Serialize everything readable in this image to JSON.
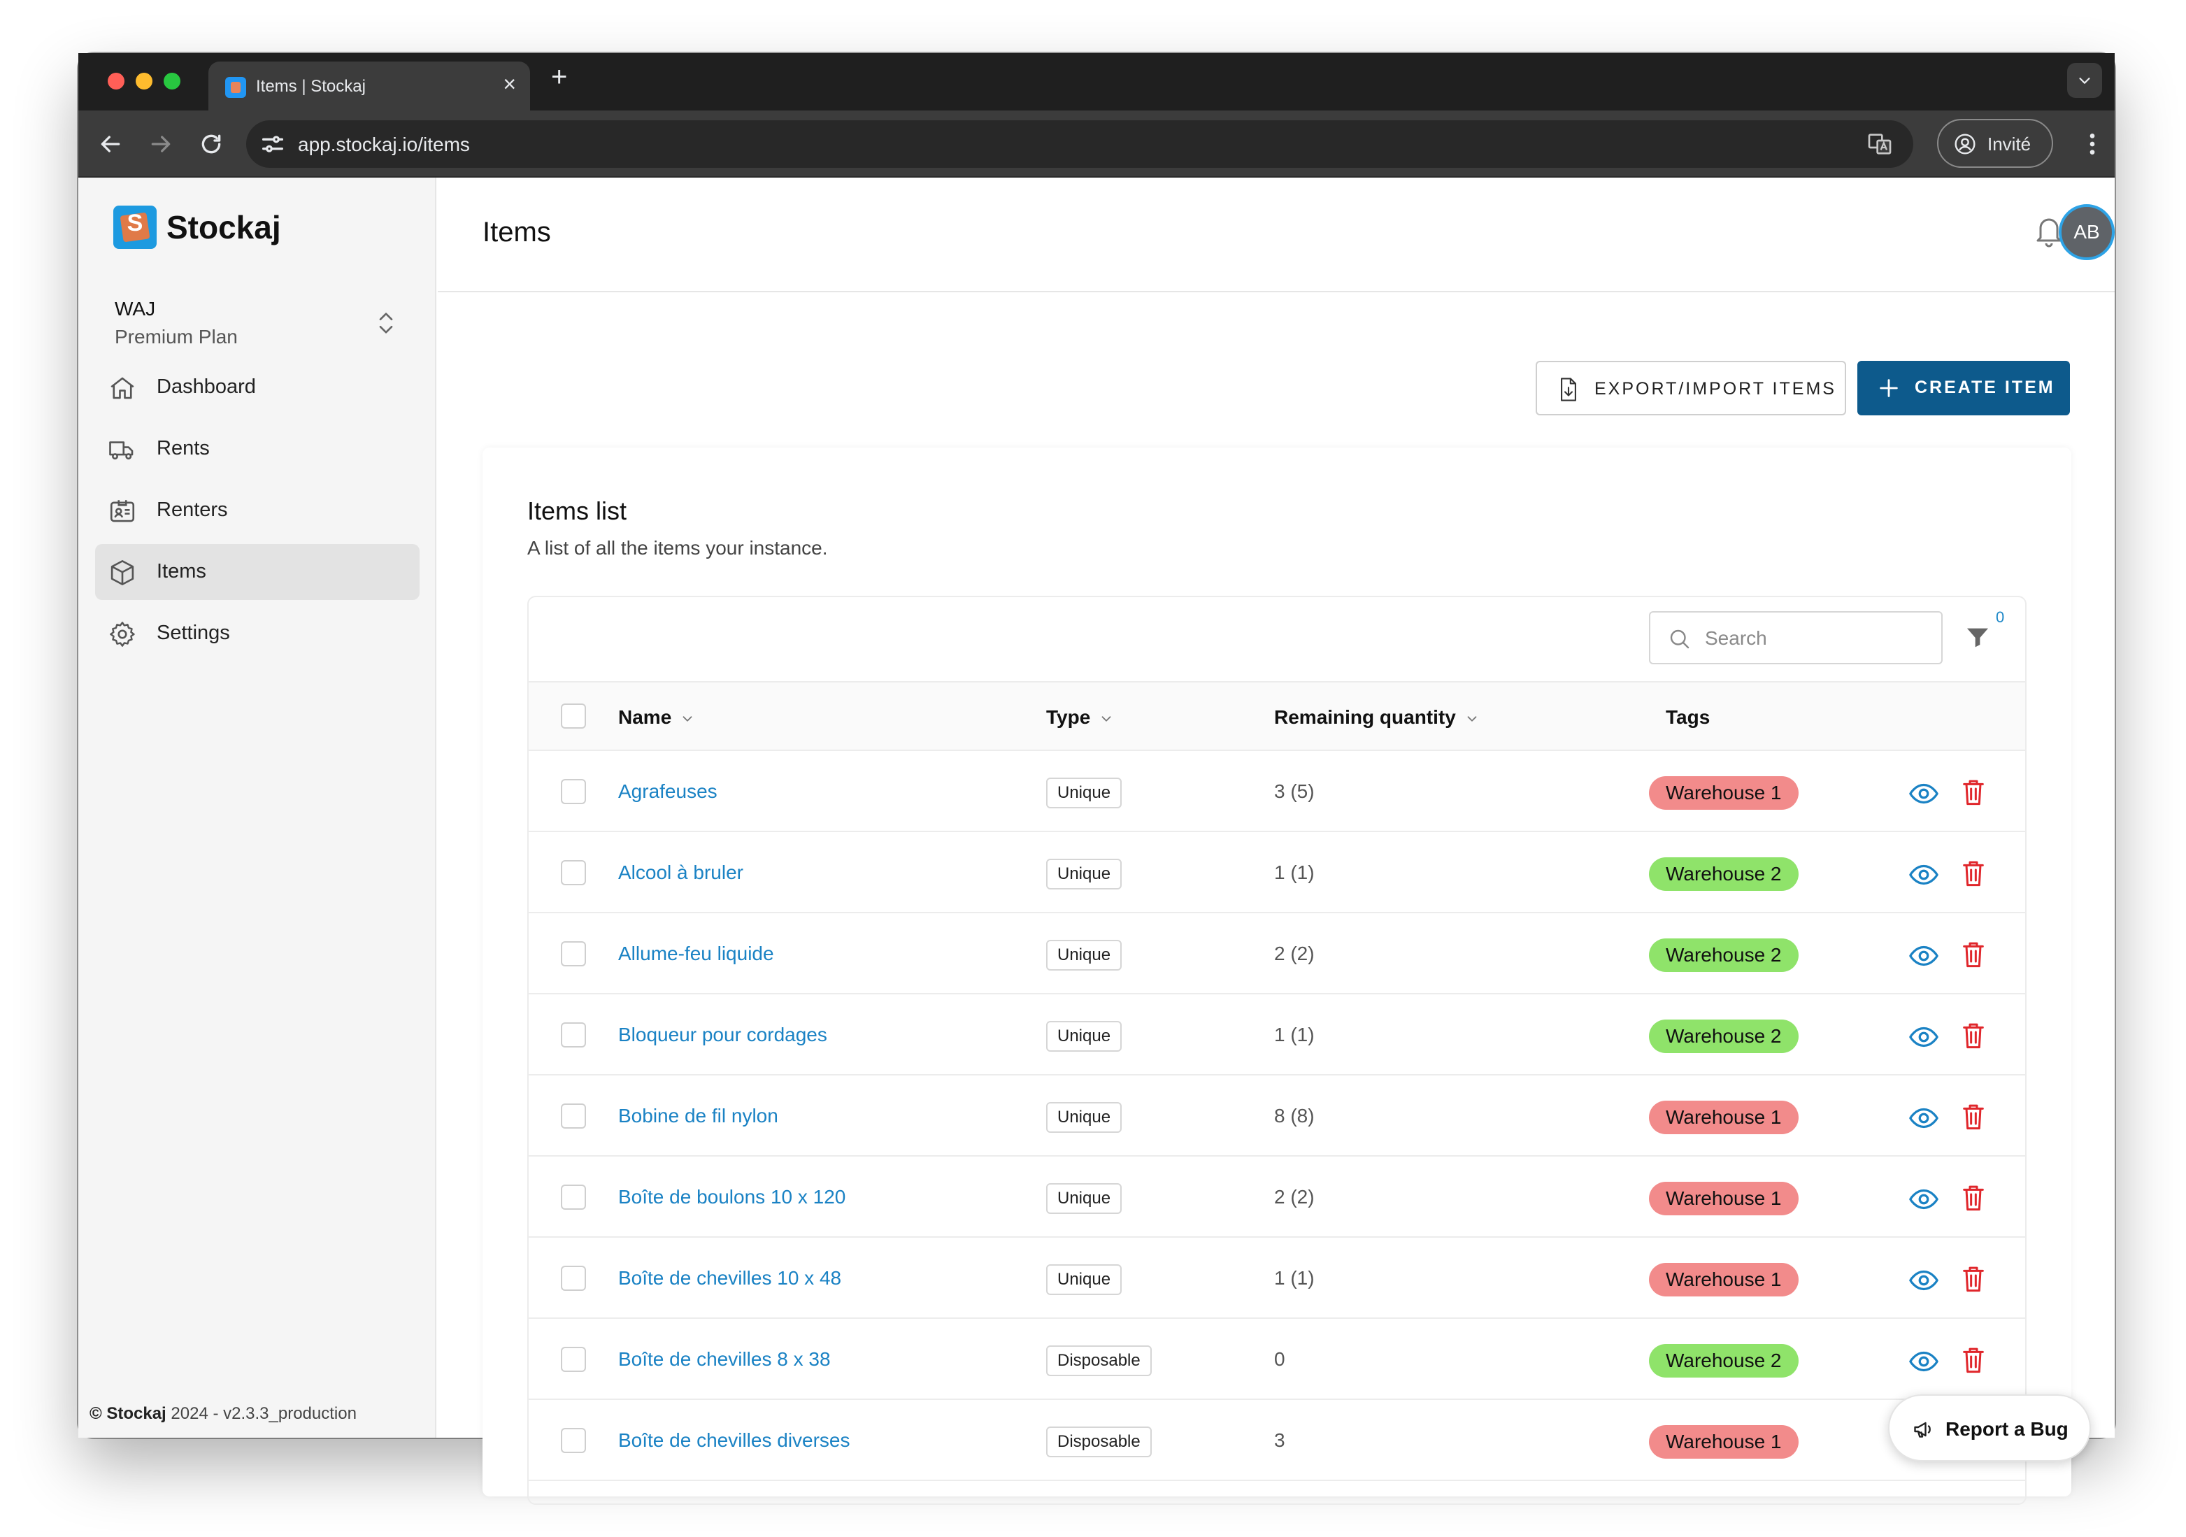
{
  "browser": {
    "tab_title": "Items | Stockaj",
    "url": "app.stockaj.io/items",
    "guest_label": "Invité"
  },
  "sidebar": {
    "brand": "Stockaj",
    "org_name": "WAJ",
    "org_plan": "Premium Plan",
    "nav": [
      {
        "label": "Dashboard",
        "icon": "home-icon"
      },
      {
        "label": "Rents",
        "icon": "truck-icon"
      },
      {
        "label": "Renters",
        "icon": "id-card-icon"
      },
      {
        "label": "Items",
        "icon": "cube-icon"
      },
      {
        "label": "Settings",
        "icon": "gear-icon"
      }
    ],
    "active": "Items",
    "footer_brand": "© Stockaj",
    "footer_rest": " 2024 - v2.3.3_production"
  },
  "header": {
    "title": "Items",
    "avatar_initials": "AB"
  },
  "actions": {
    "export_label": "EXPORT/IMPORT ITEMS",
    "create_label": "CREATE ITEM"
  },
  "list": {
    "title": "Items list",
    "subtitle": "A list of all the items your instance.",
    "search_placeholder": "Search",
    "filter_count": "0",
    "columns": {
      "name": "Name",
      "type": "Type",
      "remaining": "Remaining quantity",
      "tags": "Tags"
    },
    "rows": [
      {
        "name": "Agrafeuses",
        "type": "Unique",
        "qty": "3 (5)",
        "tag": "Warehouse 1",
        "tag_color": "#f28b8b"
      },
      {
        "name": "Alcool à bruler",
        "type": "Unique",
        "qty": "1 (1)",
        "tag": "Warehouse 2",
        "tag_color": "#8fe36a"
      },
      {
        "name": "Allume-feu liquide",
        "type": "Unique",
        "qty": "2 (2)",
        "tag": "Warehouse 2",
        "tag_color": "#8fe36a"
      },
      {
        "name": "Bloqueur pour cordages",
        "type": "Unique",
        "qty": "1 (1)",
        "tag": "Warehouse 2",
        "tag_color": "#8fe36a"
      },
      {
        "name": "Bobine de fil nylon",
        "type": "Unique",
        "qty": "8 (8)",
        "tag": "Warehouse 1",
        "tag_color": "#f28b8b"
      },
      {
        "name": "Boîte de boulons 10 x 120",
        "type": "Unique",
        "qty": "2 (2)",
        "tag": "Warehouse 1",
        "tag_color": "#f28b8b"
      },
      {
        "name": "Boîte de chevilles 10 x 48",
        "type": "Unique",
        "qty": "1 (1)",
        "tag": "Warehouse 1",
        "tag_color": "#f28b8b"
      },
      {
        "name": "Boîte de chevilles 8 x 38",
        "type": "Disposable",
        "qty": "0",
        "tag": "Warehouse 2",
        "tag_color": "#8fe36a"
      },
      {
        "name": "Boîte de chevilles diverses",
        "type": "Disposable",
        "qty": "3",
        "tag": "Warehouse 1",
        "tag_color": "#f28b8b"
      }
    ]
  },
  "report_bug_label": "Report a Bug"
}
